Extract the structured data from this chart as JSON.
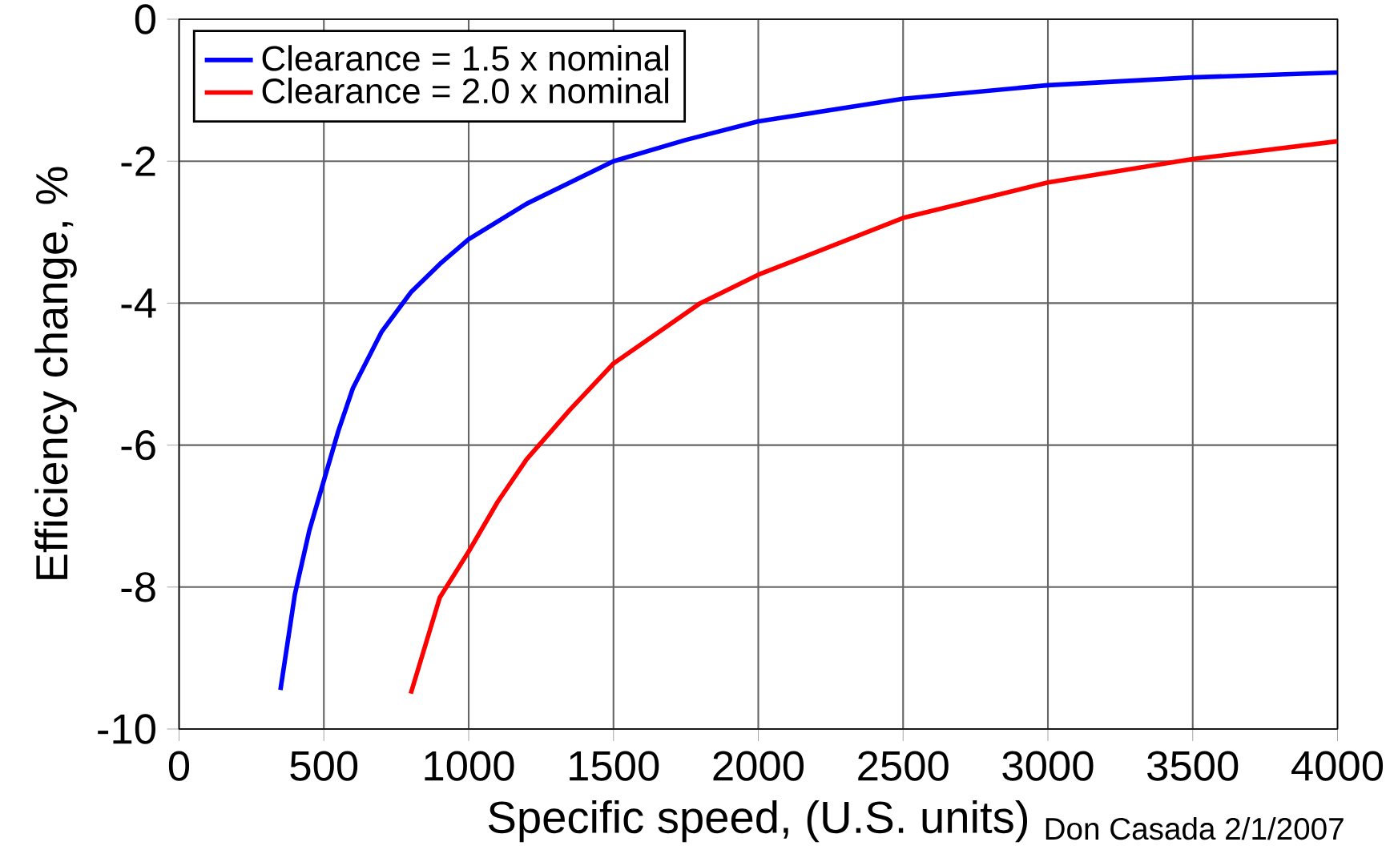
{
  "chart_data": {
    "type": "line",
    "xlabel": "Specific speed, (U.S. units)",
    "ylabel": "Efficiency change, %",
    "annotations": [
      "Don Casada 2/1/2007"
    ],
    "series": [
      {
        "name": "Clearance = 1.5 x nominal",
        "color": "#0000ff",
        "x": [
          350,
          400,
          450,
          500,
          550,
          600,
          700,
          800,
          900,
          1000,
          1200,
          1500,
          1750,
          2000,
          2500,
          3000,
          3500,
          4000
        ],
        "values": [
          -9.45,
          -8.1,
          -7.2,
          -6.5,
          -5.8,
          -5.2,
          -4.4,
          -3.85,
          -3.45,
          -3.1,
          -2.6,
          -2.0,
          -1.7,
          -1.44,
          -1.12,
          -0.93,
          -0.82,
          -0.75
        ]
      },
      {
        "name": "Clearance = 2.0 x nominal",
        "color": "#ff0000",
        "x": [
          800,
          900,
          1000,
          1100,
          1200,
          1350,
          1500,
          1800,
          2000,
          2500,
          3000,
          3500,
          4000
        ],
        "values": [
          -9.5,
          -8.15,
          -7.5,
          -6.8,
          -6.2,
          -5.5,
          -4.85,
          -4.0,
          -3.6,
          -2.8,
          -2.3,
          -1.97,
          -1.72
        ]
      }
    ],
    "xlim": [
      0,
      4000
    ],
    "xticks": [
      0,
      500,
      1000,
      1500,
      2000,
      2500,
      3000,
      3500,
      4000
    ],
    "ylim": [
      -10,
      0
    ],
    "yticks": [
      -10,
      -8,
      -6,
      -4,
      -2,
      0
    ],
    "grid": true,
    "legend": "top left",
    "marker": "none",
    "line_style": "solid"
  }
}
